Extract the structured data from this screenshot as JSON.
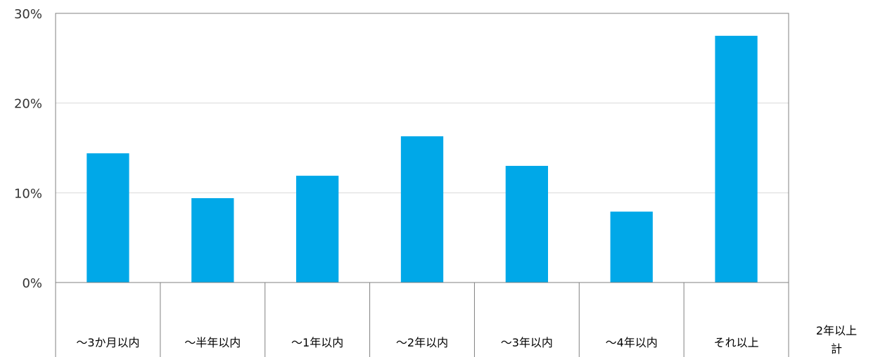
{
  "chart_data": {
    "type": "bar",
    "title": "",
    "xlabel": "",
    "ylabel": "",
    "ylim": [
      0,
      30
    ],
    "yticks": [
      0,
      10,
      20,
      30
    ],
    "ytick_labels": [
      "0%",
      "10%",
      "20%",
      "30%"
    ],
    "grid": true,
    "legend": "none",
    "bar_color": "#00A8E8",
    "categories": [
      "～3か月以内",
      "～半年以内",
      "～1年以内",
      "～2年以内",
      "～3年以内",
      "～4年以内",
      "それ以上"
    ],
    "values": [
      14.4,
      9.4,
      11.9,
      16.3,
      13.0,
      7.9,
      27.5
    ],
    "extra_label_lines": [
      "2年以上",
      "計"
    ]
  }
}
